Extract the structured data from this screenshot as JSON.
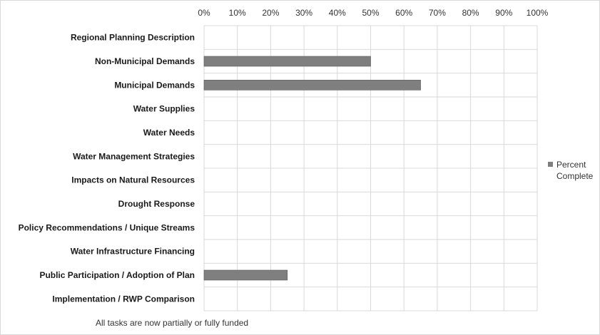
{
  "chart_data": {
    "type": "bar",
    "orientation": "horizontal",
    "title": "",
    "xlabel": "",
    "ylabel": "",
    "categories": [
      "Regional Planning Description",
      "Non-Municipal Demands",
      "Municipal Demands",
      "Water Supplies",
      "Water Needs",
      "Water Management Strategies",
      "Impacts on Natural Resources",
      "Drought Response",
      "Policy Recommendations / Unique Streams",
      "Water Infrastructure Financing",
      "Public Participation / Adoption of Plan",
      "Implementation / RWP Comparison"
    ],
    "series": [
      {
        "name": "Percent Complete",
        "values": [
          0,
          50,
          65,
          0,
          0,
          0,
          0,
          0,
          0,
          0,
          25,
          0
        ],
        "color": "#7f7f7f"
      }
    ],
    "xlim": [
      0,
      100
    ],
    "x_ticks": [
      "0%",
      "10%",
      "20%",
      "30%",
      "40%",
      "50%",
      "60%",
      "70%",
      "80%",
      "90%",
      "100%"
    ],
    "x_axis_position": "top",
    "grid": true,
    "legend_position": "right"
  },
  "footnote": "All tasks are now partially or fully funded",
  "legend": {
    "label": "Percent Complete"
  }
}
